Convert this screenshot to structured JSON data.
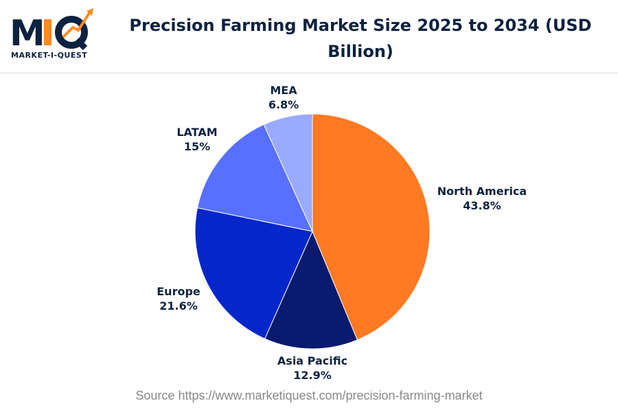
{
  "logo": {
    "letters": "MIQ",
    "tagline": "MARKET-I-QUEST"
  },
  "chart_data": {
    "type": "pie",
    "title": "Precision Farming Market Size 2025 to 2034 (USD Billion)",
    "start_angle": "12 o'clock, clockwise",
    "slices": [
      {
        "label": "North America",
        "value": 43.8,
        "display": "43.8%",
        "color": "#FF7A22"
      },
      {
        "label": "Asia Pacific",
        "value": 12.9,
        "display": "12.9%",
        "color": "#0A1A6E"
      },
      {
        "label": "Europe",
        "value": 21.6,
        "display": "21.6%",
        "color": "#0527C9"
      },
      {
        "label": "LATAM",
        "value": 15,
        "display": "15%",
        "color": "#5770FF"
      },
      {
        "label": "MEA",
        "value": 6.8,
        "display": "6.8%",
        "color": "#9AABFF"
      }
    ]
  },
  "source": "Source https://www.marketiquest.com/precision-farming-market"
}
